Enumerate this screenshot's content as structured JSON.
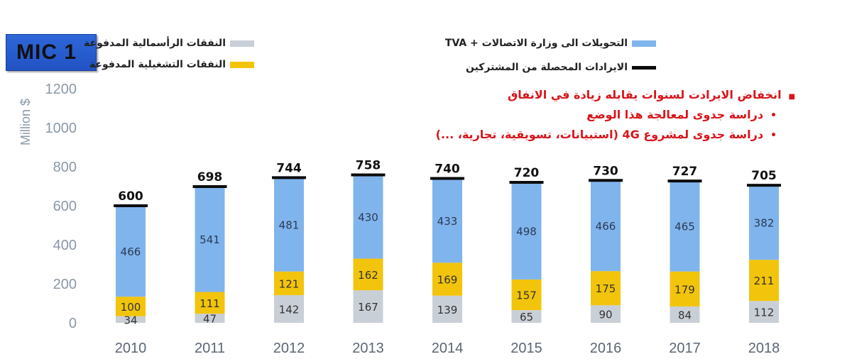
{
  "badge": "MIC 1",
  "legend": [
    {
      "label": "النفقات الرأسمالية المدفوعة",
      "color": "#c9cfd6"
    },
    {
      "label": "النفقات التشغيلية المدفوعة",
      "color": "#f2c40b"
    },
    {
      "label": "التحويلات الى وزارة الاتصالات + TVA",
      "color": "#80b4ec"
    },
    {
      "label": "الايرادات المحصلة من المشتركين",
      "color": "#0c0c0c"
    }
  ],
  "notes": [
    {
      "bullet": "■",
      "text": "انخفاض الايرادت لسنوات يقابله زيادة في الانفاق"
    },
    {
      "bullet": "•",
      "text": "دراسة جدوى لمعالجة هذا الوضع"
    },
    {
      "bullet": "•",
      "text": "دراسة جدوى لمشروع 4G (استبيانات، تسويقية، تجارية، ...)"
    }
  ],
  "chart_data": {
    "type": "bar",
    "stacked": true,
    "categories": [
      "2010",
      "2011",
      "2012",
      "2013",
      "2014",
      "2015",
      "2016",
      "2017",
      "2018"
    ],
    "series": [
      {
        "name": "النفقات الرأسمالية المدفوعة",
        "color": "#c9cfd6",
        "values": [
          34,
          47,
          142,
          167,
          139,
          65,
          90,
          84,
          112
        ]
      },
      {
        "name": "النفقات التشغيلية المدفوعة",
        "color": "#f2c40b",
        "values": [
          100,
          111,
          121,
          162,
          169,
          157,
          175,
          179,
          211
        ]
      },
      {
        "name": "التحويلات الى وزارة الاتصالات + TVA",
        "color": "#80b4ec",
        "values": [
          466,
          541,
          481,
          430,
          433,
          498,
          466,
          465,
          382
        ]
      }
    ],
    "totals": {
      "name": "الايرادات المحصلة من المشتركين",
      "color": "#0c0c0c",
      "values": [
        600,
        698,
        744,
        758,
        740,
        720,
        730,
        727,
        705
      ]
    },
    "ylabel": "Million $",
    "ylim": [
      0,
      1200
    ],
    "yticks": [
      0,
      200,
      400,
      600,
      800,
      1000,
      1200
    ]
  }
}
